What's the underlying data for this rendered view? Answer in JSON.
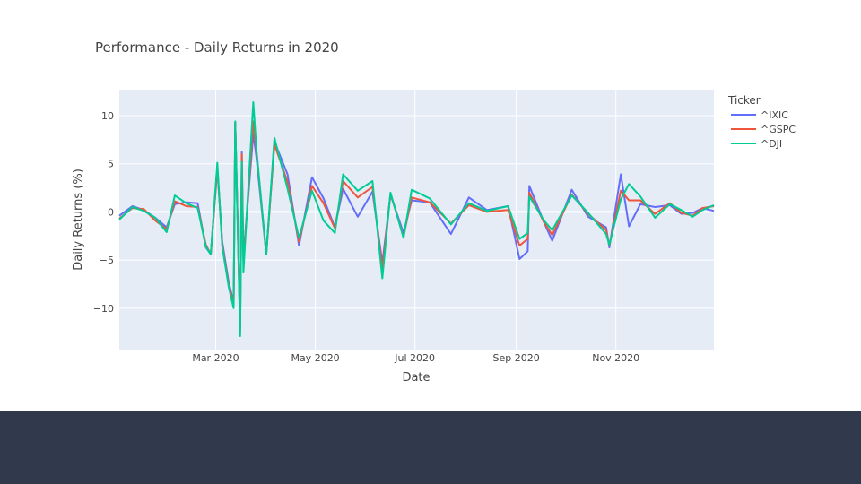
{
  "chart_data": {
    "type": "line",
    "title": "Performance - Daily Returns in 2020",
    "xlabel": "Date",
    "ylabel": "Daily Returns (%)",
    "x_range": [
      "2020-01-02",
      "2020-12-31"
    ],
    "ylim": [
      -14.3,
      12.7
    ],
    "x_ticks": [
      {
        "date": "2020-03-01",
        "label": "Mar 2020"
      },
      {
        "date": "2020-05-01",
        "label": "May 2020"
      },
      {
        "date": "2020-07-01",
        "label": "Jul 2020"
      },
      {
        "date": "2020-09-01",
        "label": "Sep 2020"
      },
      {
        "date": "2020-11-01",
        "label": "Nov 2020"
      }
    ],
    "y_ticks": [
      {
        "value": 10,
        "label": "10"
      },
      {
        "value": 5,
        "label": "5"
      },
      {
        "value": 0,
        "label": "0"
      },
      {
        "value": -5,
        "label": "−5"
      },
      {
        "value": -10,
        "label": "−10"
      }
    ],
    "grid": true,
    "legend": {
      "title": "Ticker",
      "position": "right"
    },
    "series": [
      {
        "name": "^IXIC",
        "color": "#636efa",
        "points": [
          [
            "2020-01-02",
            -0.4
          ],
          [
            "2020-01-10",
            0.6
          ],
          [
            "2020-01-17",
            0.2
          ],
          [
            "2020-01-24",
            -0.6
          ],
          [
            "2020-01-31",
            -1.6
          ],
          [
            "2020-02-05",
            0.8
          ],
          [
            "2020-02-12",
            1.0
          ],
          [
            "2020-02-19",
            0.9
          ],
          [
            "2020-02-24",
            -3.7
          ],
          [
            "2020-02-27",
            -4.4
          ],
          [
            "2020-03-02",
            4.5
          ],
          [
            "2020-03-05",
            -3.1
          ],
          [
            "2020-03-09",
            -7.3
          ],
          [
            "2020-03-12",
            -9.4
          ],
          [
            "2020-03-13",
            9.3
          ],
          [
            "2020-03-16",
            -12.3
          ],
          [
            "2020-03-17",
            6.2
          ],
          [
            "2020-03-18",
            -4.7
          ],
          [
            "2020-03-24",
            8.1
          ],
          [
            "2020-03-26",
            5.6
          ],
          [
            "2020-04-01",
            -4.4
          ],
          [
            "2020-04-06",
            7.3
          ],
          [
            "2020-04-14",
            3.9
          ],
          [
            "2020-04-21",
            -3.5
          ],
          [
            "2020-04-29",
            3.6
          ],
          [
            "2020-05-06",
            1.4
          ],
          [
            "2020-05-13",
            -1.6
          ],
          [
            "2020-05-18",
            2.4
          ],
          [
            "2020-05-27",
            -0.5
          ],
          [
            "2020-06-05",
            2.1
          ],
          [
            "2020-06-11",
            -5.3
          ],
          [
            "2020-06-16",
            1.8
          ],
          [
            "2020-06-24",
            -2.2
          ],
          [
            "2020-06-29",
            1.2
          ],
          [
            "2020-07-10",
            1.0
          ],
          [
            "2020-07-23",
            -2.3
          ],
          [
            "2020-08-03",
            1.5
          ],
          [
            "2020-08-14",
            0.2
          ],
          [
            "2020-08-27",
            0.6
          ],
          [
            "2020-09-03",
            -4.9
          ],
          [
            "2020-09-08",
            -4.1
          ],
          [
            "2020-09-09",
            2.7
          ],
          [
            "2020-09-18",
            -1.1
          ],
          [
            "2020-09-23",
            -3.0
          ],
          [
            "2020-10-05",
            2.3
          ],
          [
            "2020-10-15",
            -0.5
          ],
          [
            "2020-10-26",
            -1.6
          ],
          [
            "2020-10-28",
            -3.7
          ],
          [
            "2020-11-04",
            3.9
          ],
          [
            "2020-11-09",
            -1.5
          ],
          [
            "2020-11-16",
            0.8
          ],
          [
            "2020-11-25",
            0.5
          ],
          [
            "2020-12-04",
            0.7
          ],
          [
            "2020-12-11",
            -0.2
          ],
          [
            "2020-12-18",
            -0.1
          ],
          [
            "2020-12-24",
            0.4
          ],
          [
            "2020-12-31",
            0.1
          ]
        ]
      },
      {
        "name": "^GSPC",
        "color": "#ef553b",
        "points": [
          [
            "2020-01-02",
            -0.7
          ],
          [
            "2020-01-10",
            0.4
          ],
          [
            "2020-01-17",
            0.3
          ],
          [
            "2020-01-24",
            -0.9
          ],
          [
            "2020-01-31",
            -1.8
          ],
          [
            "2020-02-05",
            1.1
          ],
          [
            "2020-02-12",
            0.6
          ],
          [
            "2020-02-19",
            0.5
          ],
          [
            "2020-02-24",
            -3.4
          ],
          [
            "2020-02-27",
            -4.4
          ],
          [
            "2020-03-02",
            4.6
          ],
          [
            "2020-03-05",
            -3.4
          ],
          [
            "2020-03-09",
            -7.6
          ],
          [
            "2020-03-12",
            -9.5
          ],
          [
            "2020-03-13",
            9.3
          ],
          [
            "2020-03-16",
            -12.0
          ],
          [
            "2020-03-17",
            6.0
          ],
          [
            "2020-03-18",
            -5.2
          ],
          [
            "2020-03-24",
            9.4
          ],
          [
            "2020-03-26",
            6.2
          ],
          [
            "2020-04-01",
            -4.4
          ],
          [
            "2020-04-06",
            7.0
          ],
          [
            "2020-04-14",
            3.1
          ],
          [
            "2020-04-21",
            -3.1
          ],
          [
            "2020-04-29",
            2.7
          ],
          [
            "2020-05-06",
            0.9
          ],
          [
            "2020-05-13",
            -1.7
          ],
          [
            "2020-05-18",
            3.2
          ],
          [
            "2020-05-27",
            1.5
          ],
          [
            "2020-06-05",
            2.6
          ],
          [
            "2020-06-11",
            -5.9
          ],
          [
            "2020-06-16",
            1.9
          ],
          [
            "2020-06-24",
            -2.6
          ],
          [
            "2020-06-29",
            1.5
          ],
          [
            "2020-07-10",
            1.0
          ],
          [
            "2020-07-23",
            -1.2
          ],
          [
            "2020-08-03",
            0.7
          ],
          [
            "2020-08-14",
            0.0
          ],
          [
            "2020-08-27",
            0.2
          ],
          [
            "2020-09-03",
            -3.5
          ],
          [
            "2020-09-08",
            -2.8
          ],
          [
            "2020-09-09",
            2.0
          ],
          [
            "2020-09-18",
            -1.1
          ],
          [
            "2020-09-23",
            -2.4
          ],
          [
            "2020-10-05",
            1.8
          ],
          [
            "2020-10-15",
            -0.2
          ],
          [
            "2020-10-26",
            -1.9
          ],
          [
            "2020-10-28",
            -3.5
          ],
          [
            "2020-11-04",
            2.2
          ],
          [
            "2020-11-09",
            1.2
          ],
          [
            "2020-11-16",
            1.2
          ],
          [
            "2020-11-25",
            -0.2
          ],
          [
            "2020-12-04",
            0.9
          ],
          [
            "2020-12-11",
            -0.1
          ],
          [
            "2020-12-18",
            -0.4
          ],
          [
            "2020-12-24",
            0.4
          ],
          [
            "2020-12-31",
            0.6
          ]
        ]
      },
      {
        "name": "^DJI",
        "color": "#00cc96",
        "points": [
          [
            "2020-01-02",
            -0.8
          ],
          [
            "2020-01-10",
            0.5
          ],
          [
            "2020-01-17",
            0.1
          ],
          [
            "2020-01-24",
            -0.6
          ],
          [
            "2020-01-31",
            -2.1
          ],
          [
            "2020-02-05",
            1.7
          ],
          [
            "2020-02-12",
            0.9
          ],
          [
            "2020-02-19",
            0.4
          ],
          [
            "2020-02-24",
            -3.6
          ],
          [
            "2020-02-27",
            -4.4
          ],
          [
            "2020-03-02",
            5.1
          ],
          [
            "2020-03-05",
            -3.6
          ],
          [
            "2020-03-09",
            -7.8
          ],
          [
            "2020-03-12",
            -10.0
          ],
          [
            "2020-03-13",
            9.4
          ],
          [
            "2020-03-16",
            -12.9
          ],
          [
            "2020-03-17",
            5.2
          ],
          [
            "2020-03-18",
            -6.3
          ],
          [
            "2020-03-24",
            11.4
          ],
          [
            "2020-03-26",
            6.4
          ],
          [
            "2020-04-01",
            -4.4
          ],
          [
            "2020-04-06",
            7.7
          ],
          [
            "2020-04-14",
            2.4
          ],
          [
            "2020-04-21",
            -2.7
          ],
          [
            "2020-04-29",
            2.2
          ],
          [
            "2020-05-06",
            -0.9
          ],
          [
            "2020-05-13",
            -2.2
          ],
          [
            "2020-05-18",
            3.9
          ],
          [
            "2020-05-27",
            2.2
          ],
          [
            "2020-06-05",
            3.2
          ],
          [
            "2020-06-11",
            -6.9
          ],
          [
            "2020-06-16",
            2.0
          ],
          [
            "2020-06-24",
            -2.7
          ],
          [
            "2020-06-29",
            2.3
          ],
          [
            "2020-07-10",
            1.4
          ],
          [
            "2020-07-23",
            -1.3
          ],
          [
            "2020-08-03",
            0.9
          ],
          [
            "2020-08-14",
            0.1
          ],
          [
            "2020-08-27",
            0.6
          ],
          [
            "2020-09-03",
            -2.8
          ],
          [
            "2020-09-08",
            -2.2
          ],
          [
            "2020-09-09",
            1.6
          ],
          [
            "2020-09-18",
            -0.9
          ],
          [
            "2020-09-23",
            -1.9
          ],
          [
            "2020-10-05",
            1.7
          ],
          [
            "2020-10-15",
            -0.1
          ],
          [
            "2020-10-26",
            -2.3
          ],
          [
            "2020-10-28",
            -3.4
          ],
          [
            "2020-11-04",
            1.3
          ],
          [
            "2020-11-09",
            2.9
          ],
          [
            "2020-11-16",
            1.6
          ],
          [
            "2020-11-25",
            -0.6
          ],
          [
            "2020-12-04",
            0.8
          ],
          [
            "2020-12-11",
            0.2
          ],
          [
            "2020-12-18",
            -0.5
          ],
          [
            "2020-12-24",
            0.2
          ],
          [
            "2020-12-31",
            0.7
          ]
        ]
      }
    ]
  }
}
